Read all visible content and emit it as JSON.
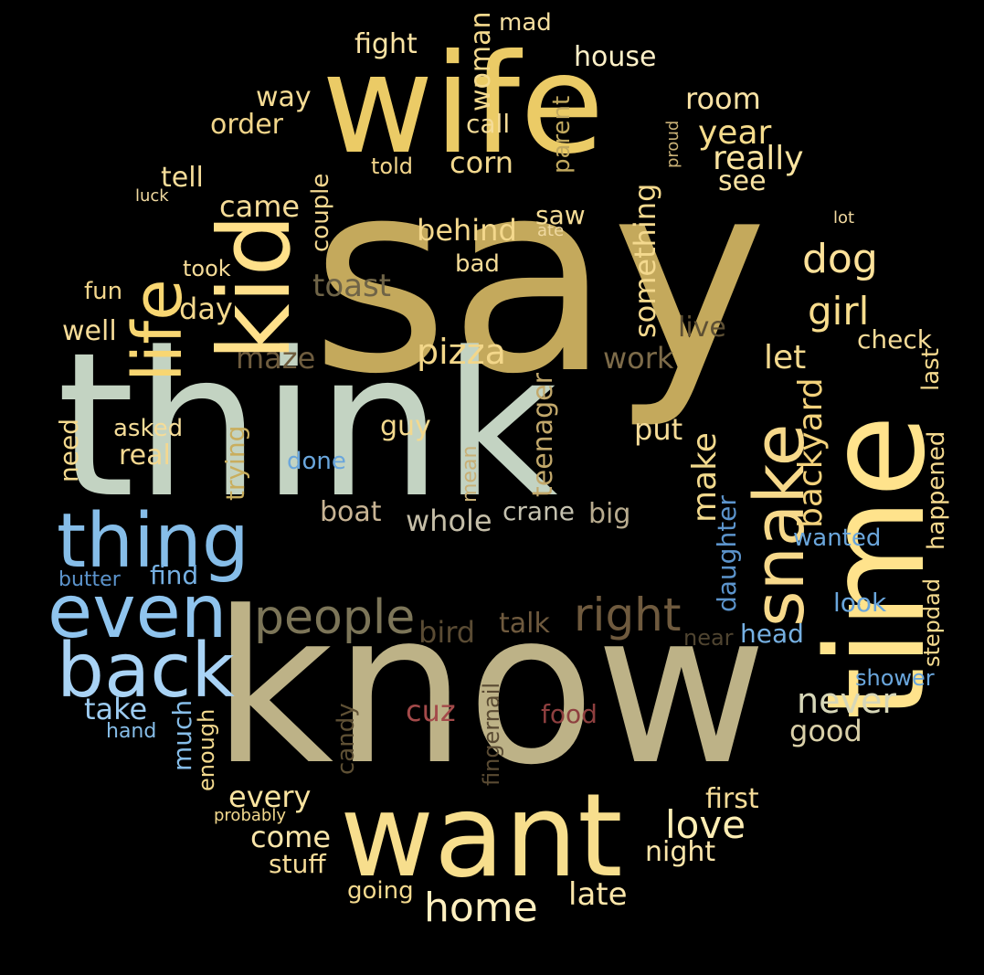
{
  "colors": {
    "background": "#000000",
    "gold": "#C9AE5E",
    "sage": "#C3D2C2",
    "khaki": "#BDB287",
    "yellow": "#F3D173",
    "pale_yellow": "#FFE08A",
    "light_yellow": "#F6DE94",
    "blue": "#86BDE8",
    "light_blue": "#A6D1F2",
    "mid_blue": "#6AA6DC",
    "olive": "#7C7558",
    "brown": "#6F5A3E",
    "dark_brown": "#5A4B33",
    "red_brown": "#A44A4A",
    "tan": "#C8B494",
    "grey_beige": "#C5BEA8"
  },
  "words": [
    {
      "id": "say",
      "text": "say",
      "color": "#C4A95C"
    },
    {
      "id": "think",
      "text": "think",
      "color": "#C3D3C2"
    },
    {
      "id": "know",
      "text": "know",
      "color": "#BDB287"
    },
    {
      "id": "wife",
      "text": "wife",
      "color": "#EBCB66"
    },
    {
      "id": "want",
      "text": "want",
      "color": "#F7DE8D"
    },
    {
      "id": "time",
      "text": "time",
      "color": "#FFE38C"
    },
    {
      "id": "kid",
      "text": "kid",
      "color": "#FFE08A"
    },
    {
      "id": "life",
      "text": "life",
      "color": "#F8D672"
    },
    {
      "id": "snake",
      "text": "snake",
      "color": "#F7D98B"
    },
    {
      "id": "thing",
      "text": "thing",
      "color": "#86BDE8"
    },
    {
      "id": "even",
      "text": "even",
      "color": "#8FC4EE"
    },
    {
      "id": "back",
      "text": "back",
      "color": "#A9D3F5"
    },
    {
      "id": "people",
      "text": "people",
      "color": "#7C7558"
    },
    {
      "id": "right",
      "text": "right",
      "color": "#6F5A3E"
    },
    {
      "id": "home",
      "text": "home",
      "color": "#FFF0C0"
    },
    {
      "id": "pizza",
      "text": "pizza",
      "color": "#F3D78A"
    },
    {
      "id": "dog",
      "text": "dog",
      "color": "#FFE29A"
    },
    {
      "id": "girl",
      "text": "girl",
      "color": "#F8DD8D"
    },
    {
      "id": "love",
      "text": "love",
      "color": "#FFEEB4"
    },
    {
      "id": "never",
      "text": "never",
      "color": "#D7D7B8"
    },
    {
      "id": "make",
      "text": "make",
      "color": "#F2D98D"
    },
    {
      "id": "backyard",
      "text": "backyard",
      "color": "#F3D27C"
    },
    {
      "id": "year",
      "text": "year",
      "color": "#F6DC8C"
    },
    {
      "id": "really",
      "text": "really",
      "color": "#FBE4A0"
    },
    {
      "id": "room",
      "text": "room",
      "color": "#FAE3A5"
    },
    {
      "id": "house",
      "text": "house",
      "color": "#FFF1C8"
    },
    {
      "id": "corn",
      "text": "corn",
      "color": "#F3D98E"
    },
    {
      "id": "behind",
      "text": "behind",
      "color": "#F4D88C"
    },
    {
      "id": "fight",
      "text": "fight",
      "color": "#FBE4A4"
    },
    {
      "id": "way",
      "text": "way",
      "color": "#F6DC95"
    },
    {
      "id": "order",
      "text": "order",
      "color": "#F1D58A"
    },
    {
      "id": "woman",
      "text": "woman",
      "color": "#F5DA8E"
    },
    {
      "id": "mad",
      "text": "mad",
      "color": "#F6DFA0"
    },
    {
      "id": "call",
      "text": "call",
      "color": "#F5DC98"
    },
    {
      "id": "parent",
      "text": "parent",
      "color": "#C2A95F"
    },
    {
      "id": "proud",
      "text": "proud",
      "color": "#C8B076"
    },
    {
      "id": "told",
      "text": "told",
      "color": "#F3D68C"
    },
    {
      "id": "tell",
      "text": "tell",
      "color": "#F6DD99"
    },
    {
      "id": "luck",
      "text": "luck",
      "color": "#F0D9A0"
    },
    {
      "id": "came",
      "text": "came",
      "color": "#F6DC98"
    },
    {
      "id": "couple",
      "text": "couple",
      "color": "#F4D890"
    },
    {
      "id": "see",
      "text": "see",
      "color": "#FAE3A2"
    },
    {
      "id": "something",
      "text": "something",
      "color": "#F4D98E"
    },
    {
      "id": "saw",
      "text": "saw",
      "color": "#F5DC96"
    },
    {
      "id": "ate",
      "text": "ate",
      "color": "#F0D9A0"
    },
    {
      "id": "bad",
      "text": "bad",
      "color": "#F5DC98"
    },
    {
      "id": "lot",
      "text": "lot",
      "color": "#F1D9A0"
    },
    {
      "id": "took",
      "text": "took",
      "color": "#F6DC98"
    },
    {
      "id": "fun",
      "text": "fun",
      "color": "#F3D68C"
    },
    {
      "id": "toast",
      "text": "toast",
      "color": "#6F6447"
    },
    {
      "id": "day",
      "text": "day",
      "color": "#F4D98E"
    },
    {
      "id": "well",
      "text": "well",
      "color": "#F6DC98"
    },
    {
      "id": "maze",
      "text": "maze",
      "color": "#6E5C3E"
    },
    {
      "id": "live",
      "text": "live",
      "color": "#5E5034"
    },
    {
      "id": "work",
      "text": "work",
      "color": "#7D6B49"
    },
    {
      "id": "let",
      "text": "let",
      "color": "#F3D98E"
    },
    {
      "id": "check",
      "text": "check",
      "color": "#F6DC98"
    },
    {
      "id": "last",
      "text": "last",
      "color": "#F4D98E"
    },
    {
      "id": "need",
      "text": "need",
      "color": "#F5DA8E"
    },
    {
      "id": "asked",
      "text": "asked",
      "color": "#F5DC98"
    },
    {
      "id": "real",
      "text": "real",
      "color": "#F4D890"
    },
    {
      "id": "trying",
      "text": "trying",
      "color": "#C9AE5E"
    },
    {
      "id": "guy",
      "text": "guy",
      "color": "#F3D98E"
    },
    {
      "id": "teenager",
      "text": "teenager",
      "color": "#C2A86B"
    },
    {
      "id": "put",
      "text": "put",
      "color": "#F6DC98"
    },
    {
      "id": "done",
      "text": "done",
      "color": "#6AA6DC"
    },
    {
      "id": "mean",
      "text": "mean",
      "color": "#C8B076"
    },
    {
      "id": "boat",
      "text": "boat",
      "color": "#C8B494"
    },
    {
      "id": "whole",
      "text": "whole",
      "color": "#C5BEA8"
    },
    {
      "id": "crane",
      "text": "crane",
      "color": "#C5C2B0"
    },
    {
      "id": "big",
      "text": "big",
      "color": "#B8AB8E"
    },
    {
      "id": "happened",
      "text": "happened",
      "color": "#F4D98E"
    },
    {
      "id": "wanted",
      "text": "wanted",
      "color": "#6AA6DC"
    },
    {
      "id": "daughter",
      "text": "daughter",
      "color": "#5C94CC"
    },
    {
      "id": "find",
      "text": "find",
      "color": "#76B0E2"
    },
    {
      "id": "butter",
      "text": "butter",
      "color": "#5C94CC"
    },
    {
      "id": "stepdad",
      "text": "stepdad",
      "color": "#F3D98E"
    },
    {
      "id": "look",
      "text": "look",
      "color": "#6AA6DC"
    },
    {
      "id": "head",
      "text": "head",
      "color": "#76B0E2"
    },
    {
      "id": "shower",
      "text": "shower",
      "color": "#6AA6DC"
    },
    {
      "id": "bird",
      "text": "bird",
      "color": "#5A4B33"
    },
    {
      "id": "talk",
      "text": "talk",
      "color": "#6F5A3E"
    },
    {
      "id": "near",
      "text": "near",
      "color": "#4F4430"
    },
    {
      "id": "fingernail",
      "text": "fingernail",
      "color": "#5A4B33"
    },
    {
      "id": "take",
      "text": "take",
      "color": "#9CCBF0"
    },
    {
      "id": "hand",
      "text": "hand",
      "color": "#86BDE8"
    },
    {
      "id": "much",
      "text": "much",
      "color": "#86BDE8"
    },
    {
      "id": "enough",
      "text": "enough",
      "color": "#F3D98E"
    },
    {
      "id": "candy",
      "text": "candy",
      "color": "#5E5034"
    },
    {
      "id": "cuz",
      "text": "cuz",
      "color": "#A44A4A"
    },
    {
      "id": "food",
      "text": "food",
      "color": "#8E3F3F"
    },
    {
      "id": "good",
      "text": "good",
      "color": "#D9D0A8"
    },
    {
      "id": "every",
      "text": "every",
      "color": "#FBE4A0"
    },
    {
      "id": "probably",
      "text": "probably",
      "color": "#F3D98E"
    },
    {
      "id": "come",
      "text": "come",
      "color": "#FBE6AA"
    },
    {
      "id": "stuff",
      "text": "stuff",
      "color": "#F6DC98"
    },
    {
      "id": "going",
      "text": "going",
      "color": "#F3D98E"
    },
    {
      "id": "late",
      "text": "late",
      "color": "#FBE6AA"
    },
    {
      "id": "night",
      "text": "night",
      "color": "#FBE6AA"
    },
    {
      "id": "first",
      "text": "first",
      "color": "#F6DC98"
    }
  ]
}
